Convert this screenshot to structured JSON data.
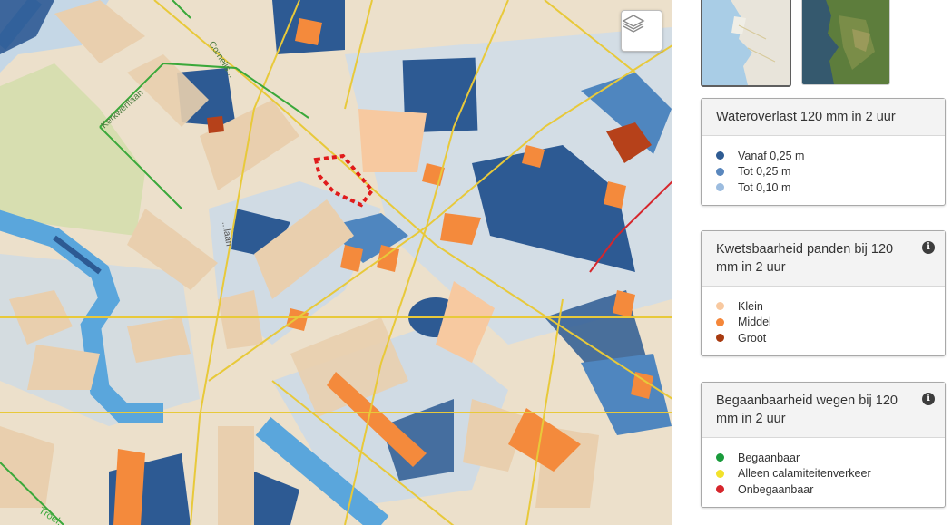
{
  "map": {
    "colors": {
      "land": "#ece0cb",
      "building": "#e9cfae",
      "water_deep": "#2d5a93",
      "water_mid": "#4f86bf",
      "water_light": "#9dc4e6",
      "canal": "#5aa6dc",
      "park": "#d7deb0",
      "vuln_small": "#f7c9a0",
      "vuln_medium": "#f48a3c",
      "vuln_large": "#b6411a",
      "road_yellow": "#e8c93a",
      "road_green": "#3aa83a",
      "selection": "#e01b1b"
    },
    "street_labels": [
      "Kerkwerflaan",
      "Cornelis...",
      "...laan",
      "Troel..."
    ],
    "layer_button_icon": "layers-icon"
  },
  "basemaps": [
    {
      "name": "basemap-topo",
      "active": true
    },
    {
      "name": "basemap-satellite",
      "active": false
    }
  ],
  "legends": {
    "wateroverlast": {
      "title": "Wateroverlast 120 mm in 2 uur",
      "items": [
        {
          "label": "Vanaf 0,25 m",
          "color": "#2f5c93"
        },
        {
          "label": "Tot 0,25 m",
          "color": "#5a87bd"
        },
        {
          "label": "Tot 0,10 m",
          "color": "#9cbcdf"
        }
      ]
    },
    "kwetsbaarheid": {
      "title": "Kwetsbaarheid panden bij 120 mm in 2 uur",
      "info_icon": "info-icon",
      "items": [
        {
          "label": "Klein",
          "color": "#f8c9a0"
        },
        {
          "label": "Middel",
          "color": "#f5873a"
        },
        {
          "label": "Groot",
          "color": "#a83a10"
        }
      ]
    },
    "begaanbaarheid": {
      "title": "Begaanbaarheid wegen bij 120 mm in 2 uur",
      "info_icon": "info-icon",
      "items": [
        {
          "label": "Begaanbaar",
          "color": "#1a9b3c"
        },
        {
          "label": "Alleen calamiteitenverkeer",
          "color": "#f2e22b"
        },
        {
          "label": "Onbegaanbaar",
          "color": "#d6262c"
        }
      ]
    }
  }
}
